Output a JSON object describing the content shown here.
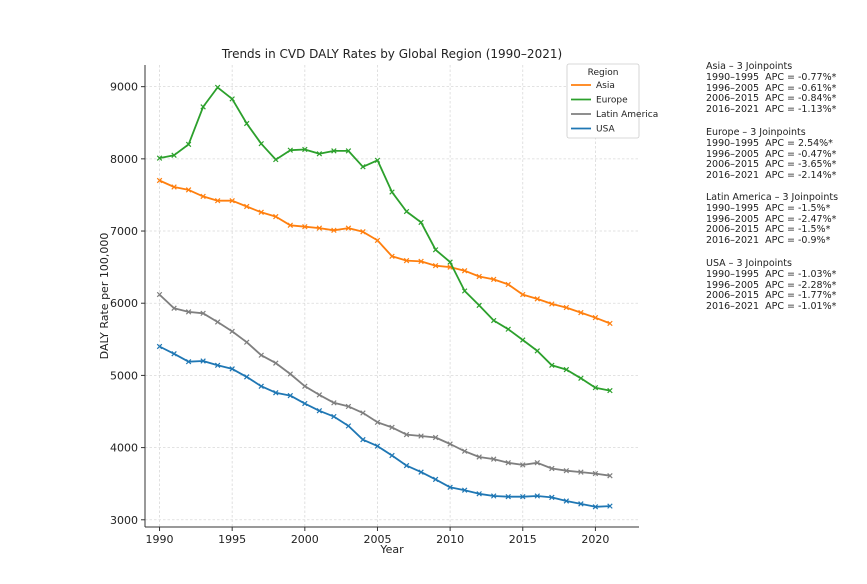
{
  "chart_data": {
    "type": "line",
    "title": "Trends in CVD DALY Rates by Global Region (1990–2021)",
    "xlabel": "Year",
    "ylabel": "DALY Rate per 100,000",
    "xlim": [
      1989,
      2023
    ],
    "ylim": [
      2900,
      9300
    ],
    "xticks": [
      1990,
      1995,
      2000,
      2005,
      2010,
      2015,
      2020
    ],
    "yticks": [
      3000,
      4000,
      5000,
      6000,
      7000,
      8000,
      9000
    ],
    "grid": true,
    "legend": {
      "title": "Region",
      "placement": "top-right"
    },
    "x": [
      1990,
      1991,
      1992,
      1993,
      1994,
      1995,
      1996,
      1997,
      1998,
      1999,
      2000,
      2001,
      2002,
      2003,
      2004,
      2005,
      2006,
      2007,
      2008,
      2009,
      2010,
      2011,
      2012,
      2013,
      2014,
      2015,
      2016,
      2017,
      2018,
      2019,
      2020,
      2021
    ],
    "series": [
      {
        "name": "Asia",
        "color": "#ff7f0e",
        "values": [
          7700,
          7610,
          7570,
          7480,
          7420,
          7420,
          7340,
          7260,
          7200,
          7080,
          7060,
          7040,
          7010,
          7040,
          6990,
          6870,
          6650,
          6590,
          6580,
          6520,
          6500,
          6450,
          6370,
          6330,
          6260,
          6120,
          6060,
          5990,
          5940,
          5870,
          5800,
          5720
        ]
      },
      {
        "name": "Europe",
        "color": "#2ca02c",
        "values": [
          8010,
          8050,
          8200,
          8720,
          8990,
          8830,
          8490,
          8210,
          7990,
          8120,
          8130,
          8070,
          8110,
          8110,
          7890,
          7980,
          7540,
          7270,
          7120,
          6740,
          6570,
          6170,
          5970,
          5760,
          5640,
          5490,
          5340,
          5140,
          5080,
          4960,
          4830,
          4790
        ]
      },
      {
        "name": "Latin America",
        "color": "#7f7f7f",
        "values": [
          6120,
          5930,
          5880,
          5860,
          5740,
          5610,
          5460,
          5280,
          5170,
          5020,
          4850,
          4730,
          4620,
          4570,
          4480,
          4350,
          4280,
          4180,
          4160,
          4140,
          4050,
          3950,
          3870,
          3840,
          3790,
          3760,
          3790,
          3710,
          3680,
          3660,
          3640,
          3610
        ]
      },
      {
        "name": "USA",
        "color": "#1f77b4",
        "values": [
          5400,
          5300,
          5190,
          5200,
          5140,
          5090,
          4980,
          4850,
          4760,
          4720,
          4610,
          4510,
          4430,
          4300,
          4110,
          4020,
          3890,
          3750,
          3660,
          3560,
          3450,
          3410,
          3360,
          3330,
          3320,
          3320,
          3330,
          3310,
          3260,
          3220,
          3180,
          3190
        ]
      }
    ]
  },
  "annotations": [
    {
      "title": "Asia – 3 Joinpoints",
      "lines": [
        "1990–1995  APC = -0.77%*",
        "1996–2005  APC = -0.61%*",
        "2006–2015  APC = -0.84%*",
        "2016–2021  APC = -1.13%*"
      ]
    },
    {
      "title": "Europe – 3 Joinpoints",
      "lines": [
        "1990–1995  APC = 2.54%*",
        "1996–2005  APC = -0.47%*",
        "2006–2015  APC = -3.65%*",
        "2016–2021  APC = -2.14%*"
      ]
    },
    {
      "title": "Latin America – 3 Joinpoints",
      "lines": [
        "1990–1995  APC = -1.5%*",
        "1996–2005  APC = -2.47%*",
        "2006–2015  APC = -1.5%*",
        "2016–2021  APC = -0.9%*"
      ]
    },
    {
      "title": "USA – 3 Joinpoints",
      "lines": [
        "1990–1995  APC = -1.03%*",
        "1996–2005  APC = -2.28%*",
        "2006–2015  APC = -1.77%*",
        "2016–2021  APC = -1.01%*"
      ]
    }
  ]
}
